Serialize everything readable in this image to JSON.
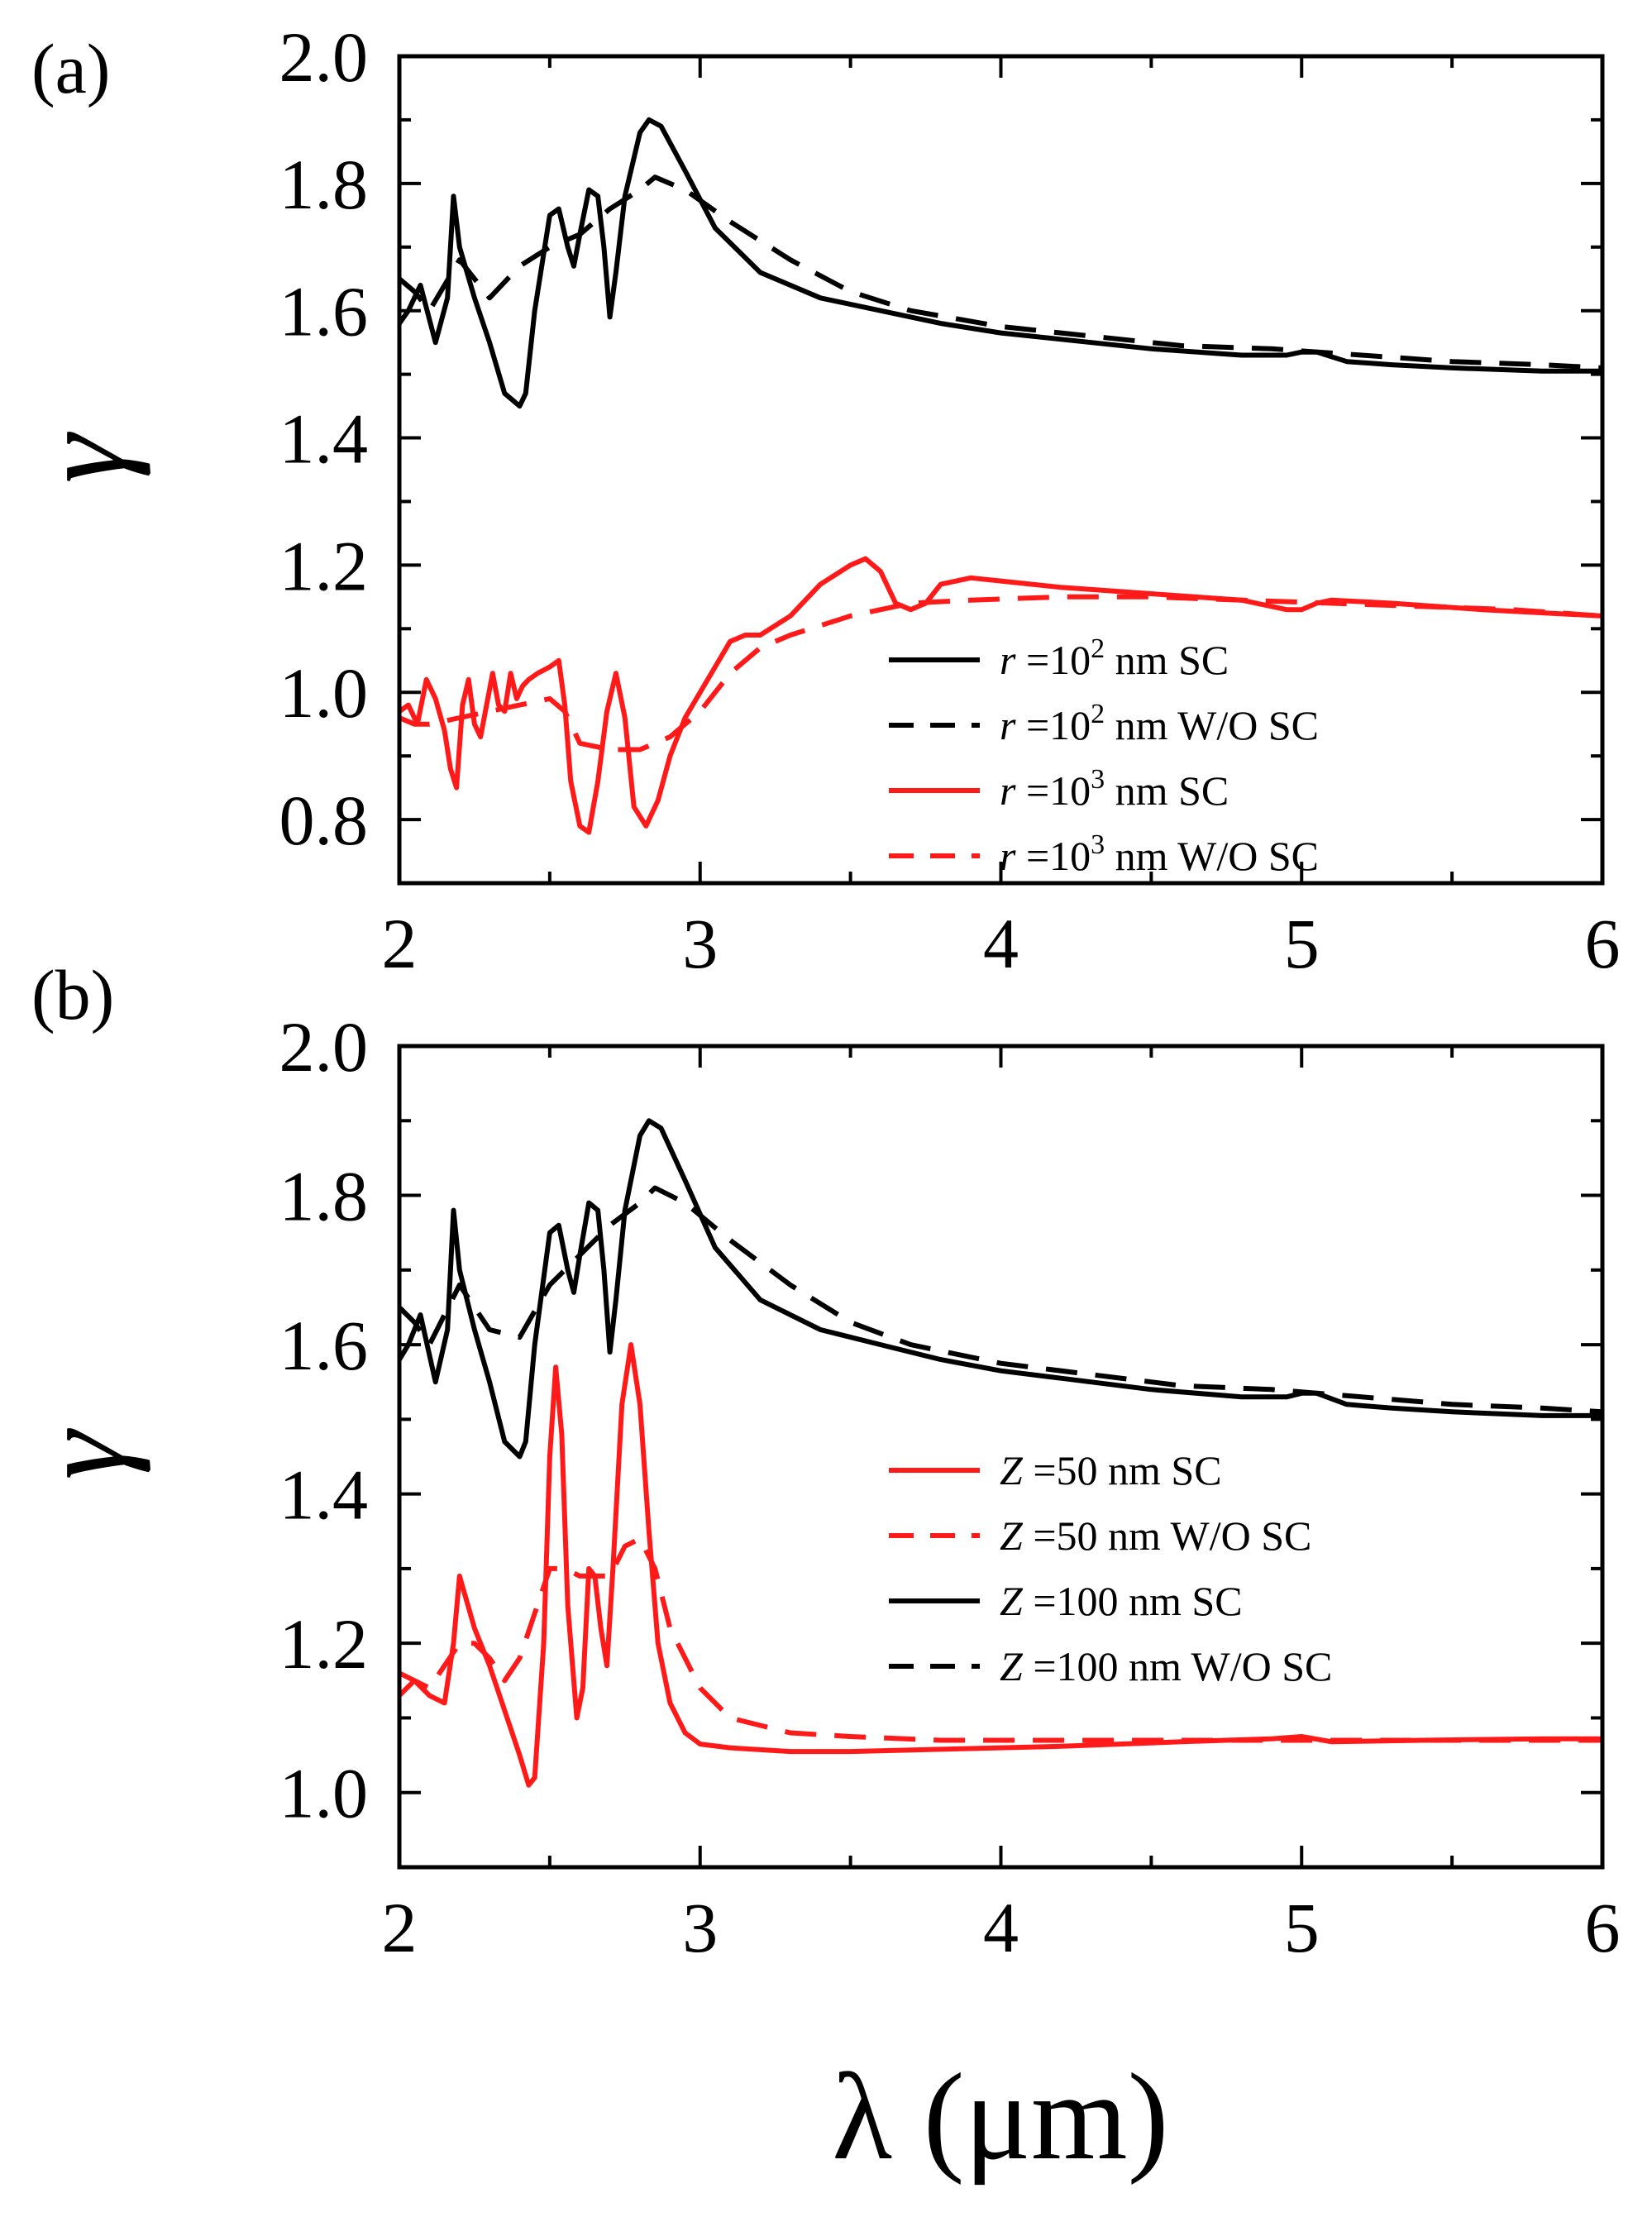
{
  "figure": {
    "xlabel": "λ (μm)"
  },
  "colors": {
    "black": "#000000",
    "red": "#ff1a1a"
  },
  "chart_data": [
    {
      "type": "line",
      "panel_label": "(a)",
      "title": "",
      "xlabel": "λ (μm)",
      "ylabel": "γ",
      "xlim": [
        2,
        6
      ],
      "ylim": [
        0.7,
        2.0
      ],
      "xticks": [
        2,
        3,
        4,
        5,
        6
      ],
      "xtick_labels": [
        "2",
        "3",
        "4",
        "5",
        "6"
      ],
      "yticks": [
        0.8,
        1.0,
        1.2,
        1.4,
        1.6,
        1.8,
        2.0
      ],
      "ytick_labels": [
        "0.8",
        "1.0",
        "1.2",
        "1.4",
        "1.6",
        "1.8",
        "2.0"
      ],
      "grid": false,
      "legend_position": "bottom-right",
      "series": [
        {
          "name": "r =10^2 nm SC",
          "legend": {
            "var": "r",
            "eq": " =10",
            "sup": "2",
            "rest": " nm SC"
          },
          "color": "#000000",
          "dash": "solid",
          "x": [
            2.0,
            2.03,
            2.07,
            2.12,
            2.16,
            2.18,
            2.2,
            2.25,
            2.3,
            2.35,
            2.4,
            2.42,
            2.45,
            2.5,
            2.53,
            2.56,
            2.58,
            2.6,
            2.63,
            2.66,
            2.68,
            2.7,
            2.72,
            2.75,
            2.8,
            2.83,
            2.87,
            2.95,
            3.05,
            3.2,
            3.4,
            3.6,
            3.8,
            4.0,
            4.2,
            4.5,
            4.8,
            4.95,
            5.0,
            5.05,
            5.15,
            5.3,
            5.5,
            5.8,
            6.0
          ],
          "y": [
            1.58,
            1.6,
            1.64,
            1.55,
            1.62,
            1.78,
            1.7,
            1.62,
            1.55,
            1.47,
            1.45,
            1.47,
            1.6,
            1.75,
            1.76,
            1.7,
            1.67,
            1.72,
            1.79,
            1.78,
            1.7,
            1.59,
            1.66,
            1.78,
            1.88,
            1.9,
            1.89,
            1.82,
            1.73,
            1.66,
            1.62,
            1.6,
            1.58,
            1.565,
            1.555,
            1.54,
            1.53,
            1.53,
            1.535,
            1.535,
            1.52,
            1.515,
            1.51,
            1.505,
            1.505
          ]
        },
        {
          "name": "r =10^2 nm W/O SC",
          "legend": {
            "var": "r",
            "eq": " =10",
            "sup": "2",
            "rest": " nm W/O SC"
          },
          "color": "#000000",
          "dash": "dashed",
          "x": [
            2.0,
            2.05,
            2.1,
            2.2,
            2.3,
            2.4,
            2.5,
            2.6,
            2.7,
            2.8,
            2.85,
            2.95,
            3.1,
            3.3,
            3.5,
            3.7,
            4.0,
            4.3,
            4.6,
            4.9,
            5.2,
            5.5,
            5.8,
            6.0
          ],
          "y": [
            1.65,
            1.63,
            1.6,
            1.68,
            1.62,
            1.67,
            1.7,
            1.72,
            1.76,
            1.79,
            1.81,
            1.79,
            1.74,
            1.68,
            1.63,
            1.6,
            1.575,
            1.56,
            1.545,
            1.54,
            1.53,
            1.52,
            1.515,
            1.51
          ]
        },
        {
          "name": "r =10^3 nm SC",
          "legend": {
            "var": "r",
            "eq": " =10",
            "sup": "3",
            "rest": " nm SC"
          },
          "color": "#ff1a1a",
          "dash": "solid",
          "x": [
            2.0,
            2.03,
            2.06,
            2.09,
            2.12,
            2.15,
            2.17,
            2.19,
            2.21,
            2.23,
            2.25,
            2.27,
            2.29,
            2.31,
            2.33,
            2.35,
            2.37,
            2.39,
            2.41,
            2.43,
            2.46,
            2.5,
            2.53,
            2.55,
            2.57,
            2.6,
            2.63,
            2.66,
            2.69,
            2.72,
            2.75,
            2.78,
            2.82,
            2.86,
            2.9,
            2.95,
            3.0,
            3.05,
            3.1,
            3.15,
            3.2,
            3.3,
            3.4,
            3.5,
            3.55,
            3.6,
            3.65,
            3.7,
            3.75,
            3.8,
            3.9,
            4.0,
            4.2,
            4.5,
            4.8,
            4.95,
            5.0,
            5.05,
            5.1,
            5.3,
            5.6,
            6.0
          ],
          "y": [
            0.97,
            0.98,
            0.95,
            1.02,
            0.99,
            0.94,
            0.88,
            0.85,
            0.98,
            1.02,
            0.95,
            0.93,
            0.98,
            1.03,
            0.98,
            0.97,
            1.03,
            0.99,
            1.01,
            1.02,
            1.03,
            1.04,
            1.05,
            0.98,
            0.86,
            0.79,
            0.78,
            0.86,
            0.97,
            1.03,
            0.96,
            0.82,
            0.79,
            0.83,
            0.9,
            0.96,
            1.0,
            1.04,
            1.08,
            1.09,
            1.09,
            1.12,
            1.17,
            1.2,
            1.21,
            1.19,
            1.14,
            1.13,
            1.14,
            1.17,
            1.18,
            1.175,
            1.165,
            1.155,
            1.145,
            1.13,
            1.13,
            1.14,
            1.145,
            1.14,
            1.13,
            1.12
          ]
        },
        {
          "name": "r =10^3 nm W/O SC",
          "legend": {
            "var": "r",
            "eq": " =10",
            "sup": "3",
            "rest": " nm W/O SC"
          },
          "color": "#ff1a1a",
          "dash": "dashed",
          "x": [
            2.0,
            2.05,
            2.1,
            2.2,
            2.3,
            2.4,
            2.5,
            2.55,
            2.6,
            2.7,
            2.8,
            2.9,
            3.0,
            3.1,
            3.2,
            3.3,
            3.5,
            3.7,
            3.9,
            4.2,
            4.5,
            4.8,
            5.1,
            5.4,
            5.7,
            6.0
          ],
          "y": [
            0.96,
            0.95,
            0.95,
            0.96,
            0.97,
            0.98,
            0.99,
            0.97,
            0.92,
            0.91,
            0.91,
            0.93,
            0.97,
            1.03,
            1.07,
            1.09,
            1.12,
            1.14,
            1.145,
            1.15,
            1.15,
            1.145,
            1.14,
            1.135,
            1.13,
            1.12
          ]
        }
      ]
    },
    {
      "type": "line",
      "panel_label": "(b)",
      "title": "",
      "xlabel": "λ (μm)",
      "ylabel": "γ",
      "xlim": [
        2,
        6
      ],
      "ylim": [
        0.9,
        2.0
      ],
      "xticks": [
        2,
        3,
        4,
        5,
        6
      ],
      "xtick_labels": [
        "2",
        "3",
        "4",
        "5",
        "6"
      ],
      "yticks": [
        1.0,
        1.2,
        1.4,
        1.6,
        1.8,
        2.0
      ],
      "ytick_labels": [
        "1.0",
        "1.2",
        "1.4",
        "1.6",
        "1.8",
        "2.0"
      ],
      "grid": false,
      "legend_position": "bottom-right",
      "series": [
        {
          "name": "Z =50 nm SC",
          "legend": {
            "var": "Z",
            "eq": " =50",
            "sup": "",
            "rest": " nm SC"
          },
          "color": "#ff1a1a",
          "dash": "solid",
          "x": [
            2.0,
            2.05,
            2.1,
            2.15,
            2.18,
            2.2,
            2.25,
            2.3,
            2.35,
            2.4,
            2.43,
            2.45,
            2.48,
            2.5,
            2.52,
            2.54,
            2.56,
            2.59,
            2.61,
            2.63,
            2.65,
            2.67,
            2.69,
            2.71,
            2.74,
            2.77,
            2.8,
            2.83,
            2.86,
            2.9,
            2.95,
            3.0,
            3.1,
            3.3,
            3.5,
            3.8,
            4.2,
            4.6,
            4.9,
            5.0,
            5.1,
            5.4,
            5.8,
            6.0
          ],
          "y": [
            1.13,
            1.15,
            1.13,
            1.12,
            1.2,
            1.29,
            1.22,
            1.17,
            1.11,
            1.05,
            1.01,
            1.02,
            1.2,
            1.45,
            1.57,
            1.48,
            1.25,
            1.1,
            1.14,
            1.3,
            1.29,
            1.22,
            1.17,
            1.3,
            1.52,
            1.6,
            1.52,
            1.35,
            1.2,
            1.12,
            1.08,
            1.065,
            1.06,
            1.055,
            1.055,
            1.058,
            1.062,
            1.068,
            1.072,
            1.075,
            1.068,
            1.07,
            1.072,
            1.072
          ]
        },
        {
          "name": "Z =50 nm W/O SC",
          "legend": {
            "var": "Z",
            "eq": " =50",
            "sup": "",
            "rest": " nm W/O SC"
          },
          "color": "#ff1a1a",
          "dash": "dashed",
          "x": [
            2.0,
            2.05,
            2.1,
            2.2,
            2.25,
            2.3,
            2.35,
            2.4,
            2.45,
            2.5,
            2.55,
            2.6,
            2.65,
            2.7,
            2.75,
            2.8,
            2.85,
            2.9,
            3.0,
            3.1,
            3.2,
            3.3,
            3.5,
            3.8,
            4.1,
            4.5,
            5.0,
            5.5,
            6.0
          ],
          "y": [
            1.16,
            1.15,
            1.14,
            1.2,
            1.2,
            1.18,
            1.15,
            1.18,
            1.24,
            1.3,
            1.3,
            1.29,
            1.29,
            1.29,
            1.33,
            1.34,
            1.3,
            1.22,
            1.14,
            1.1,
            1.09,
            1.08,
            1.075,
            1.07,
            1.07,
            1.07,
            1.07,
            1.07,
            1.07
          ]
        },
        {
          "name": "Z =100 nm SC",
          "legend": {
            "var": "Z",
            "eq": " =100",
            "sup": "",
            "rest": " nm SC"
          },
          "color": "#000000",
          "dash": "solid",
          "x": [
            2.0,
            2.03,
            2.07,
            2.12,
            2.16,
            2.18,
            2.2,
            2.25,
            2.3,
            2.35,
            2.4,
            2.42,
            2.45,
            2.5,
            2.53,
            2.56,
            2.58,
            2.6,
            2.63,
            2.66,
            2.68,
            2.7,
            2.72,
            2.75,
            2.8,
            2.83,
            2.87,
            2.95,
            3.05,
            3.2,
            3.4,
            3.6,
            3.8,
            4.0,
            4.2,
            4.5,
            4.8,
            4.95,
            5.0,
            5.05,
            5.15,
            5.3,
            5.5,
            5.8,
            6.0
          ],
          "y": [
            1.58,
            1.6,
            1.64,
            1.55,
            1.62,
            1.78,
            1.7,
            1.62,
            1.55,
            1.47,
            1.45,
            1.47,
            1.6,
            1.75,
            1.76,
            1.7,
            1.67,
            1.72,
            1.79,
            1.78,
            1.7,
            1.59,
            1.66,
            1.78,
            1.88,
            1.9,
            1.89,
            1.82,
            1.73,
            1.66,
            1.62,
            1.6,
            1.58,
            1.565,
            1.555,
            1.54,
            1.53,
            1.53,
            1.535,
            1.535,
            1.52,
            1.515,
            1.51,
            1.505,
            1.505
          ]
        },
        {
          "name": "Z =100 nm W/O SC",
          "legend": {
            "var": "Z",
            "eq": " =100",
            "sup": "",
            "rest": " nm W/O SC"
          },
          "color": "#000000",
          "dash": "dashed",
          "x": [
            2.0,
            2.05,
            2.1,
            2.2,
            2.3,
            2.4,
            2.5,
            2.6,
            2.7,
            2.8,
            2.85,
            2.95,
            3.1,
            3.3,
            3.5,
            3.7,
            4.0,
            4.3,
            4.6,
            4.9,
            5.2,
            5.5,
            5.8,
            6.0
          ],
          "y": [
            1.65,
            1.63,
            1.6,
            1.68,
            1.62,
            1.61,
            1.68,
            1.72,
            1.76,
            1.79,
            1.81,
            1.79,
            1.74,
            1.68,
            1.63,
            1.6,
            1.575,
            1.56,
            1.545,
            1.54,
            1.53,
            1.52,
            1.515,
            1.51
          ]
        }
      ]
    }
  ]
}
